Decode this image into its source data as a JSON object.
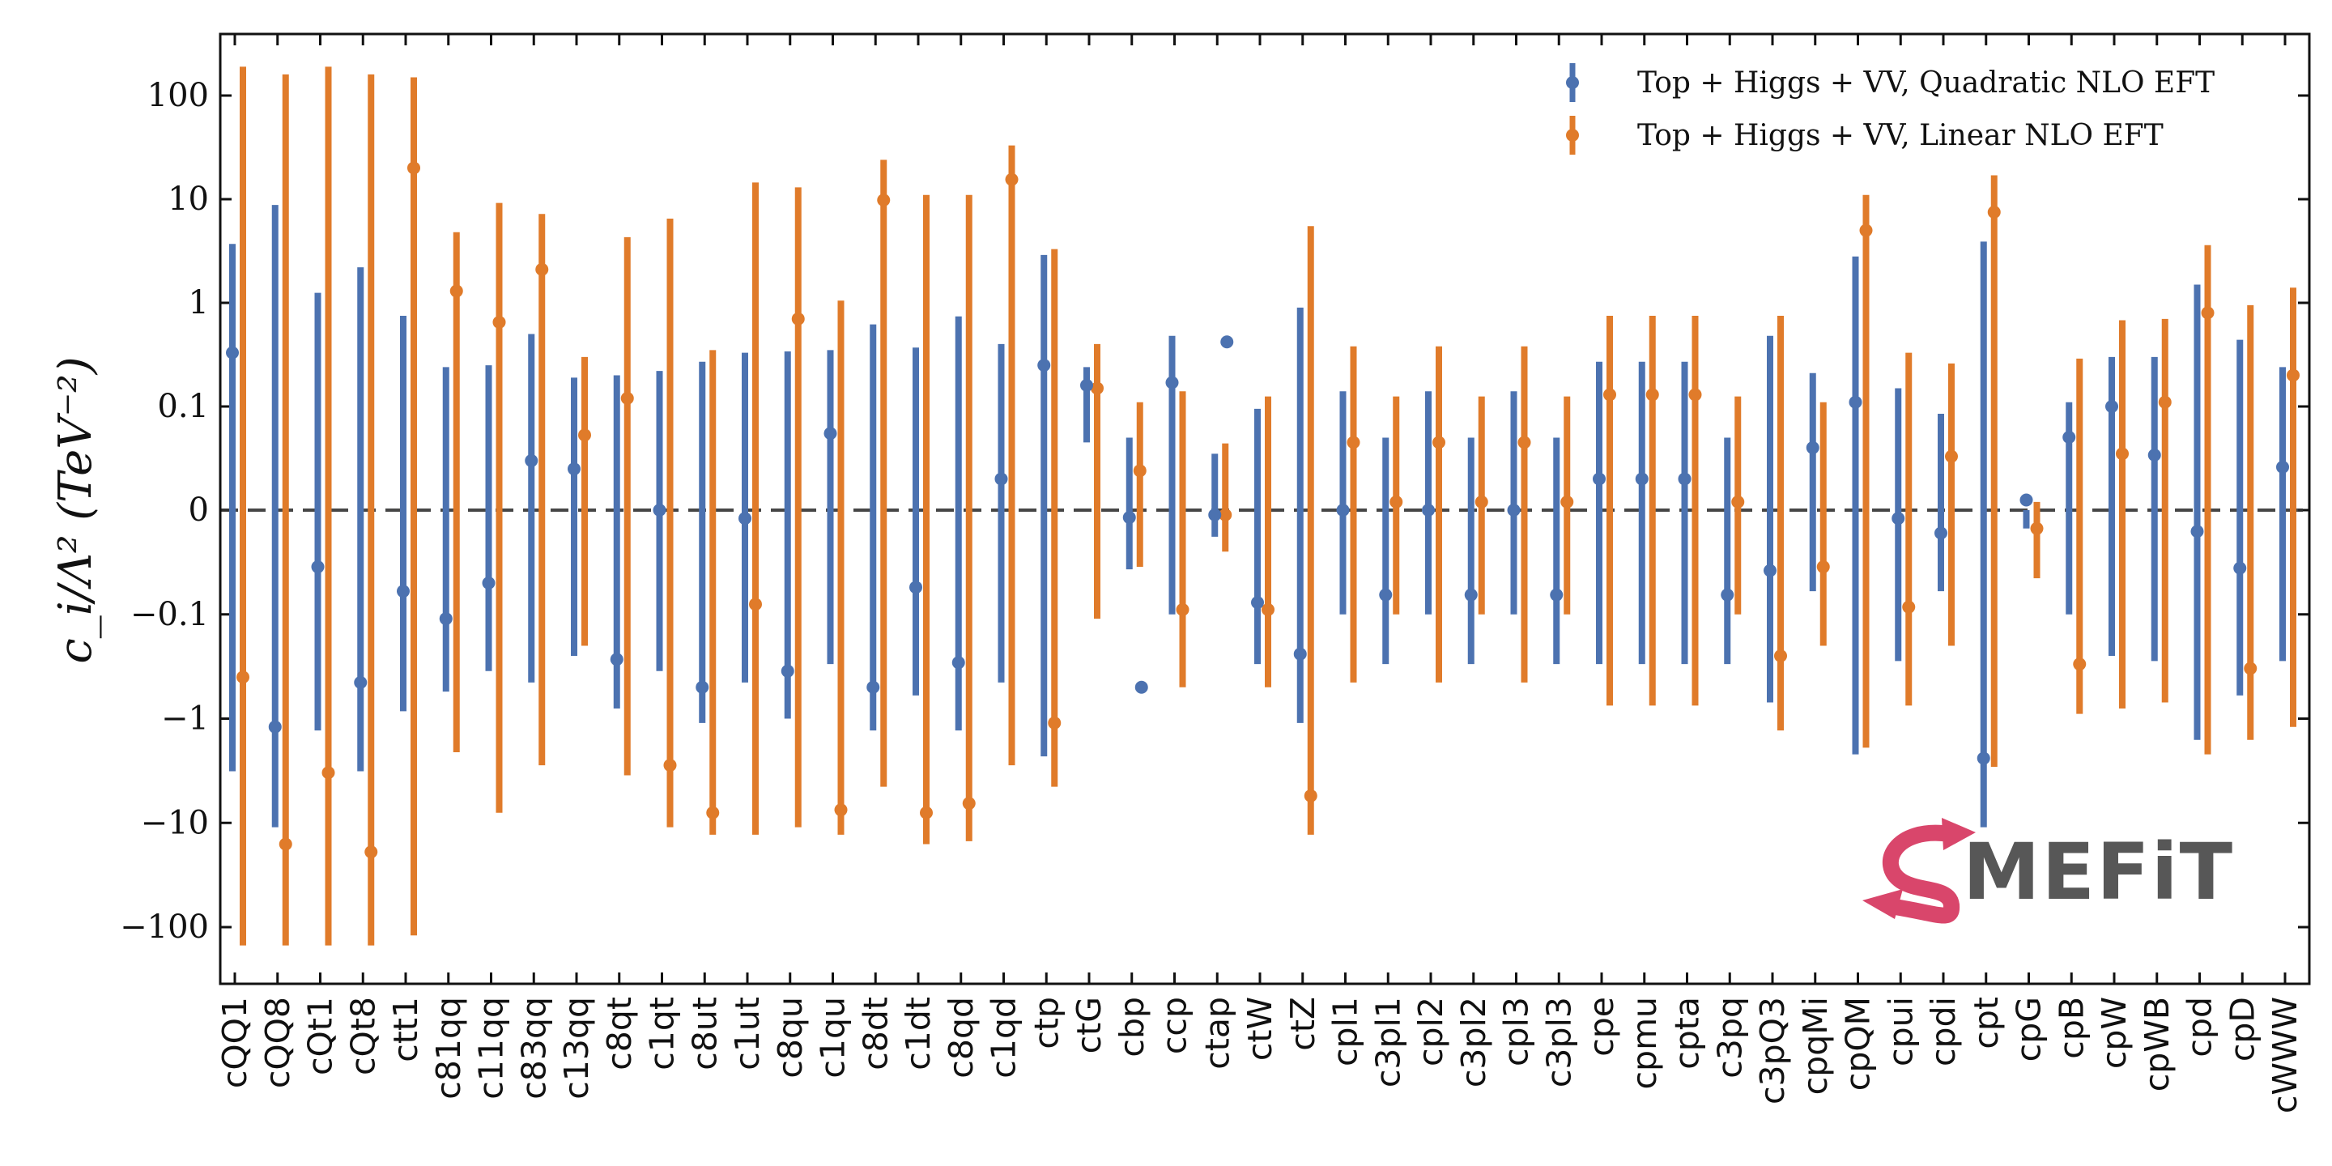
{
  "chart_data": {
    "type": "scatter",
    "subtype": "errorbar",
    "title": "",
    "xlabel": "",
    "ylabel": "c_i/Λ² (TeV⁻²)",
    "yscale": "symlog",
    "ylim": [
      -300,
      300
    ],
    "yticks": [
      100,
      10,
      1,
      0.1,
      0,
      -0.1,
      -1,
      -10,
      -100
    ],
    "ytick_labels": [
      "100",
      "10",
      "1",
      "0.1",
      "0",
      "−0.1",
      "−1",
      "−10",
      "−100"
    ],
    "reference_line": {
      "y": 0,
      "style": "dashed",
      "color": "#333333"
    },
    "grid": false,
    "legend_position": "top-right",
    "categories": [
      "cQQ1",
      "cQQ8",
      "cQt1",
      "cQt8",
      "ctt1",
      "c81qq",
      "c11qq",
      "c83qq",
      "c13qq",
      "c8qt",
      "c1qt",
      "c8ut",
      "c1ut",
      "c8qu",
      "c1qu",
      "c8dt",
      "c1dt",
      "c8qd",
      "c1qd",
      "ctp",
      "ctG",
      "cbp",
      "ccp",
      "ctap",
      "ctW",
      "ctZ",
      "cpl1",
      "c3pl1",
      "cpl2",
      "c3pl2",
      "cpl3",
      "c3pl3",
      "cpe",
      "cpmu",
      "cpta",
      "c3pq",
      "c3pQ3",
      "cpqMi",
      "cpQM",
      "cpui",
      "cpdi",
      "cpt",
      "cpG",
      "cpB",
      "cpW",
      "cpWB",
      "cpd",
      "cpD",
      "cWWW"
    ],
    "series": [
      {
        "name": "Top + Higgs + VV,  Quadratic NLO EFT",
        "color": "#4c72b0",
        "central": [
          0.33,
          -1.2,
          -0.035,
          -0.45,
          -0.06,
          -0.11,
          -0.05,
          0.03,
          0.025,
          -0.27,
          0,
          -0.5,
          -0.012,
          -0.35,
          0.055,
          -0.5,
          -0.055,
          -0.29,
          0.02,
          0.25,
          0.16,
          0.0085,
          0.17,
          0.009,
          -0.077,
          -0.24,
          0.01,
          -0.065,
          0.01,
          -0.065,
          0.01,
          -0.065,
          0.02,
          0.02,
          0.02,
          -0.065,
          -0.038,
          0.04,
          0.11,
          -0.012,
          0.006,
          -2.4,
          -0.008,
          -0.002,
          0.1,
          0.034,
          -0.016,
          -0.036,
          0.026
        ],
        "low": [
          -3.2,
          -11,
          -1.3,
          -3.2,
          -0.85,
          -0.55,
          -0.35,
          -0.45,
          -0.25,
          -0.8,
          -0.35,
          -1.1,
          -0.45,
          -1.0,
          -0.3,
          -1.3,
          -0.6,
          -1.3,
          -0.45,
          -2.3,
          0.045,
          -0.037,
          -0.1,
          -0.018,
          -0.3,
          -1.1,
          -0.1,
          -0.3,
          -0.1,
          -0.3,
          -0.1,
          -0.3,
          -0.3,
          -0.3,
          -0.3,
          -0.3,
          -0.7,
          -0.06,
          -2.2,
          -0.28,
          -0.06,
          -11,
          -0.015,
          -0.1,
          -0.25,
          -0.28,
          -1.6,
          -0.6,
          -0.28
        ],
        "high": [
          3.7,
          8.8,
          1.25,
          2.2,
          0.75,
          0.24,
          0.25,
          0.5,
          0.19,
          0.2,
          0.22,
          0.27,
          0.33,
          0.34,
          0.35,
          0.62,
          0.37,
          0.74,
          0.4,
          2.9,
          0.24,
          0.05,
          0.48,
          0.035,
          0.095,
          0.9,
          0.14,
          0.05,
          0.14,
          0.05,
          0.14,
          0.05,
          0.27,
          0.27,
          0.27,
          0.05,
          0.48,
          0.21,
          2.8,
          0.15,
          0.085,
          3.9,
          0,
          0.11,
          0.3,
          0.3,
          1.5,
          0.44,
          0.24
        ]
      },
      {
        "name": "Top + Higgs + VV,  Linear NLO EFT",
        "color": "#e07b2a",
        "central": [
          -0.4,
          -16,
          -3.3,
          -19,
          20,
          1.3,
          0.65,
          2.1,
          0.053,
          0.12,
          -2.8,
          -8,
          -0.08,
          0.7,
          -7.5,
          9.8,
          -8,
          -6.5,
          15.5,
          -1.1,
          0.15,
          0.024,
          -0.09,
          0.009,
          -0.09,
          -5.5,
          0.045,
          0.012,
          0.045,
          0.012,
          0.045,
          0.012,
          0.13,
          0.13,
          0.13,
          0.012,
          -0.25,
          -0.035,
          5,
          -0.085,
          0.033,
          7.5,
          -0.015,
          -0.3,
          0.035,
          0.11,
          0.8,
          -0.33,
          0.2
        ],
        "low": [
          -150,
          -150,
          -150,
          -150,
          -120,
          -2.1,
          -8,
          -2.8,
          -0.2,
          -3.5,
          -11,
          -13,
          -13,
          -11,
          -13,
          -4.5,
          -16,
          -15,
          -2.8,
          -4.5,
          -0.11,
          -0.035,
          -0.5,
          -0.025,
          -0.5,
          -13,
          -0.45,
          -0.1,
          -0.45,
          -0.1,
          -0.45,
          -0.1,
          -0.75,
          -0.75,
          -0.75,
          -0.1,
          -1.3,
          -0.2,
          -1.9,
          -0.75,
          -0.2,
          -2.9,
          -0.045,
          -0.9,
          -0.8,
          -0.7,
          -2.2,
          -1.6,
          -1.2
        ],
        "high": [
          190,
          160,
          190,
          160,
          150,
          4.8,
          9.2,
          7.2,
          0.3,
          4.3,
          6.5,
          0.35,
          14.5,
          13,
          1.05,
          24,
          11,
          11,
          33,
          3.3,
          0.4,
          0.11,
          0.14,
          0.044,
          0.125,
          5.5,
          0.38,
          0.125,
          0.38,
          0.125,
          0.38,
          0.125,
          0.75,
          0.75,
          0.75,
          0.125,
          0.75,
          0.11,
          11,
          0.33,
          0.26,
          17,
          0.012,
          0.29,
          0.68,
          0.7,
          3.6,
          0.95,
          1.4
        ]
      }
    ],
    "extra_points": [
      {
        "series": "Top + Higgs + VV,  Quadratic NLO EFT",
        "category": "cbp",
        "y": -0.5
      },
      {
        "series": "Top + Higgs + VV,  Quadratic NLO EFT",
        "category": "ctap",
        "y": 0.42
      }
    ]
  },
  "legend": {
    "items": [
      {
        "label": "Top + Higgs + VV,  Quadratic NLO EFT",
        "color": "#4c72b0"
      },
      {
        "label": "Top + Higgs + VV,  Linear NLO EFT",
        "color": "#e07b2a"
      }
    ]
  },
  "logo": {
    "text": "MEFiT",
    "accent_color": "#d9466b",
    "text_color": "#575757"
  }
}
